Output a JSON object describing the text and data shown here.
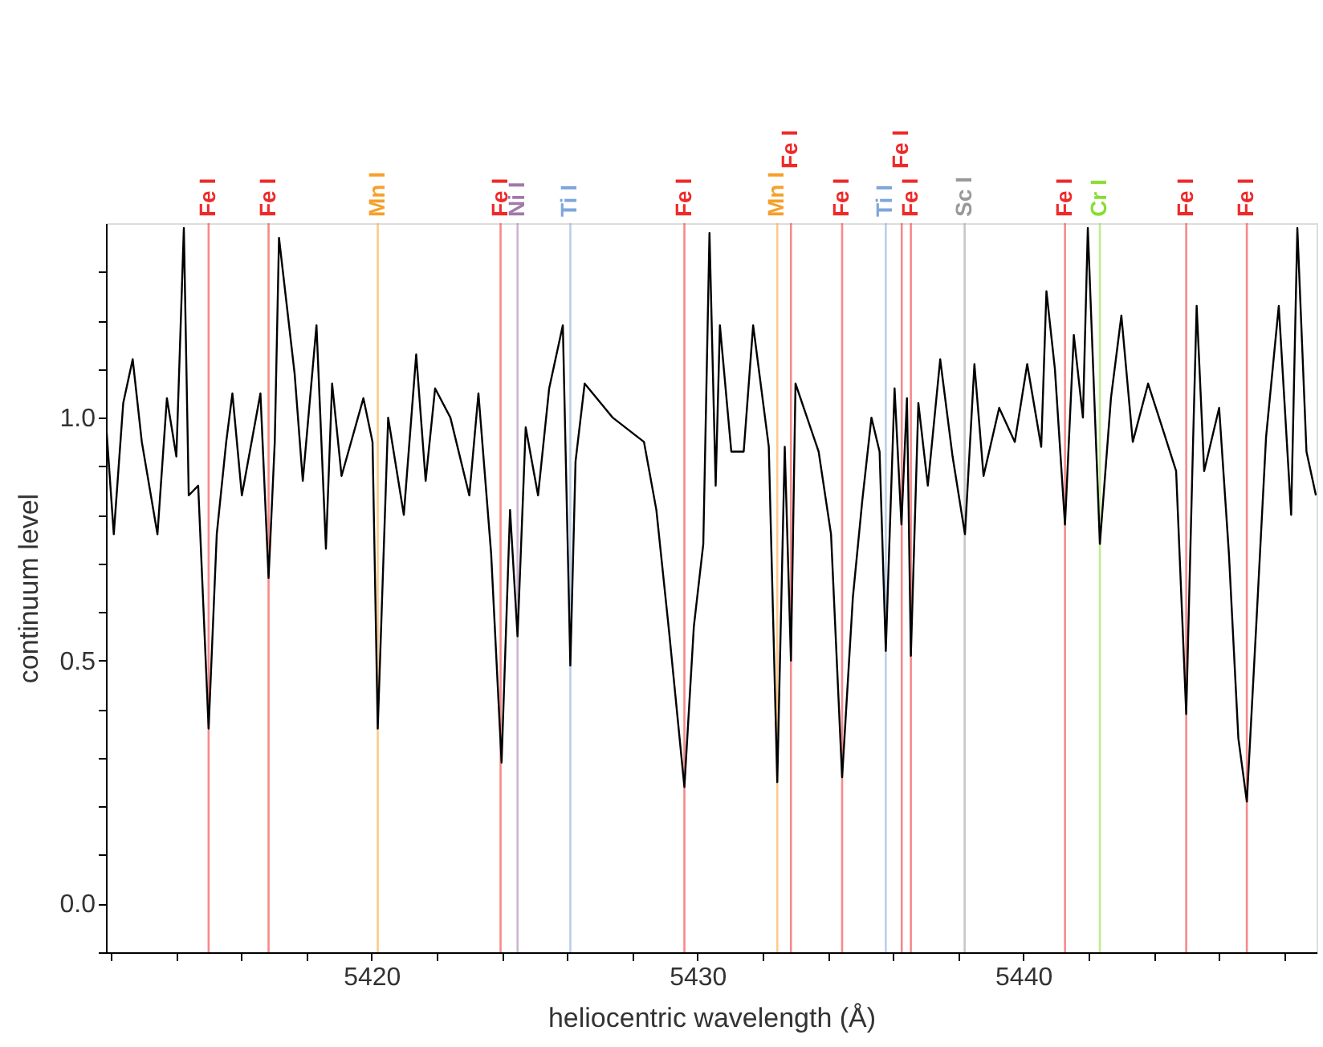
{
  "chart_data": {
    "type": "line",
    "xlabel": "heliocentric wavelength (Å)",
    "ylabel": "continuum level",
    "xlim": [
      5411.85,
      5449.0
    ],
    "ylim": [
      -0.1,
      1.4
    ],
    "xticks": [
      {
        "value": 5412,
        "label": null
      },
      {
        "value": 5414,
        "label": null
      },
      {
        "value": 5416,
        "label": null
      },
      {
        "value": 5418,
        "label": null
      },
      5420,
      {
        "value": 5422,
        "label": null
      },
      {
        "value": 5424,
        "label": null
      },
      {
        "value": 5426,
        "label": null
      },
      {
        "value": 5428,
        "label": null
      },
      5430,
      {
        "value": 5432,
        "label": null
      },
      {
        "value": 5434,
        "label": null
      },
      {
        "value": 5436,
        "label": null
      },
      {
        "value": 5438,
        "label": null
      },
      5440,
      {
        "value": 5442,
        "label": null
      },
      {
        "value": 5444,
        "label": null
      },
      {
        "value": 5446,
        "label": null
      },
      {
        "value": 5448,
        "label": null
      }
    ],
    "yticks": [
      {
        "value": -0.1,
        "label": null
      },
      {
        "value": 0,
        "label": "0.0"
      },
      {
        "value": 0.1,
        "label": null
      },
      {
        "value": 0.2,
        "label": null
      },
      {
        "value": 0.3,
        "label": null
      },
      {
        "value": 0.4,
        "label": null
      },
      {
        "value": 0.5,
        "label": "0.5"
      },
      {
        "value": 0.6,
        "label": null
      },
      {
        "value": 0.7,
        "label": null
      },
      {
        "value": 0.8,
        "label": null
      },
      {
        "value": 0.9,
        "label": null
      },
      {
        "value": 1.0,
        "label": "1.0"
      },
      {
        "value": 1.1,
        "label": null
      },
      {
        "value": 1.2,
        "label": null
      },
      {
        "value": 1.3,
        "label": null
      }
    ],
    "grid": false,
    "series": [
      {
        "color": "#000000",
        "x": [
          5411.85,
          5412.09,
          5412.38,
          5412.67,
          5412.95,
          5413.43,
          5413.72,
          5414.01,
          5414.24,
          5414.39,
          5414.68,
          5415.0,
          5415.25,
          5415.54,
          5415.73,
          5416.02,
          5416.59,
          5416.84,
          5417.03,
          5417.16,
          5417.64,
          5417.89,
          5418.31,
          5418.6,
          5418.79,
          5419.08,
          5419.75,
          5420.03,
          5420.19,
          5420.51,
          5420.99,
          5421.37,
          5421.66,
          5421.95,
          5422.42,
          5423.0,
          5423.28,
          5423.67,
          5423.99,
          5424.25,
          5424.48,
          5424.73,
          5425.11,
          5425.45,
          5425.87,
          5426.1,
          5426.26,
          5426.54,
          5427.4,
          5428.36,
          5428.74,
          5429.13,
          5429.6,
          5429.89,
          5430.18,
          5430.37,
          5430.56,
          5430.69,
          5431.04,
          5431.42,
          5431.71,
          5432.19,
          5432.45,
          5432.68,
          5432.87,
          5433.01,
          5433.72,
          5434.1,
          5434.44,
          5434.77,
          5435.06,
          5435.34,
          5435.59,
          5435.78,
          5436.05,
          5436.26,
          5436.43,
          5436.55,
          5436.78,
          5437.07,
          5437.45,
          5437.83,
          5438.21,
          5438.5,
          5438.78,
          5439.26,
          5439.74,
          5440.12,
          5440.55,
          5440.71,
          5440.97,
          5441.28,
          5441.55,
          5441.83,
          5441.98,
          5442.35,
          5442.69,
          5443.01,
          5443.36,
          5443.83,
          5444.31,
          5444.69,
          5445.0,
          5445.21,
          5445.32,
          5445.55,
          5446.01,
          5446.31,
          5446.6,
          5446.86,
          5447.17,
          5447.45,
          5447.84,
          5448.22,
          5448.41,
          5448.69,
          5448.98
        ],
        "values": [
          0.99,
          0.76,
          1.03,
          1.12,
          0.95,
          0.76,
          1.04,
          0.92,
          1.39,
          0.84,
          0.86,
          0.36,
          0.76,
          0.95,
          1.05,
          0.84,
          1.05,
          0.67,
          0.95,
          1.37,
          1.09,
          0.87,
          1.19,
          0.73,
          1.07,
          0.88,
          1.04,
          0.95,
          0.36,
          1.0,
          0.8,
          1.13,
          0.87,
          1.06,
          1.0,
          0.84,
          1.05,
          0.72,
          0.29,
          0.81,
          0.55,
          0.98,
          0.84,
          1.06,
          1.19,
          0.49,
          0.91,
          1.07,
          1.0,
          0.95,
          0.81,
          0.56,
          0.24,
          0.57,
          0.74,
          1.38,
          0.86,
          1.19,
          0.93,
          0.93,
          1.19,
          0.94,
          0.25,
          0.94,
          0.5,
          1.07,
          0.93,
          0.76,
          0.26,
          0.63,
          0.83,
          1.0,
          0.93,
          0.52,
          1.06,
          0.78,
          1.04,
          0.51,
          1.03,
          0.86,
          1.12,
          0.92,
          0.76,
          1.11,
          0.88,
          1.02,
          0.95,
          1.11,
          0.94,
          1.26,
          1.1,
          0.78,
          1.17,
          1.0,
          1.39,
          0.74,
          1.04,
          1.21,
          0.95,
          1.07,
          0.97,
          0.89,
          0.39,
          0.95,
          1.23,
          0.89,
          1.02,
          0.72,
          0.34,
          0.21,
          0.6,
          0.96,
          1.23,
          0.8,
          1.39,
          0.93,
          0.84
        ]
      }
    ],
    "ref_lines": [
      {
        "axis": "x",
        "value": 5415.0,
        "label": "Fe I",
        "color": "#ee2a2a"
      },
      {
        "axis": "x",
        "value": 5416.84,
        "label": "Fe I",
        "color": "#ee2a2a"
      },
      {
        "axis": "x",
        "value": 5420.19,
        "label": "Mn I",
        "color": "#f5a02a"
      },
      {
        "axis": "x",
        "value": 5423.96,
        "label": "Fe I",
        "color": "#ee2a2a"
      },
      {
        "axis": "x",
        "value": 5424.48,
        "label": "Ni I",
        "color": "#a07aa8"
      },
      {
        "axis": "x",
        "value": 5426.1,
        "label": "Ti I",
        "color": "#7fa6dc"
      },
      {
        "axis": "x",
        "value": 5429.6,
        "label": "Fe I",
        "color": "#ee2a2a"
      },
      {
        "axis": "x",
        "value": 5432.45,
        "label": "Mn I",
        "color": "#f5a02a"
      },
      {
        "axis": "x",
        "value": 5432.87,
        "label": "Fe I",
        "color": "#ee2a2a"
      },
      {
        "axis": "x",
        "value": 5434.44,
        "label": "Fe I",
        "color": "#ee2a2a"
      },
      {
        "axis": "x",
        "value": 5435.78,
        "label": "Ti I",
        "color": "#7fa6dc"
      },
      {
        "axis": "x",
        "value": 5436.27,
        "label": "Fe I",
        "color": "#ee2a2a"
      },
      {
        "axis": "x",
        "value": 5436.55,
        "label": "Fe I",
        "color": "#ee2a2a"
      },
      {
        "axis": "x",
        "value": 5438.2,
        "label": "Sc I",
        "color": "#999999"
      },
      {
        "axis": "x",
        "value": 5441.28,
        "label": "Fe I",
        "color": "#ee2a2a"
      },
      {
        "axis": "x",
        "value": 5442.35,
        "label": "Cr I",
        "color": "#88dd33"
      },
      {
        "axis": "x",
        "value": 5445.0,
        "label": "Fe I",
        "color": "#ee2a2a"
      },
      {
        "axis": "x",
        "value": 5446.86,
        "label": "Fe I",
        "color": "#ee2a2a"
      }
    ]
  }
}
